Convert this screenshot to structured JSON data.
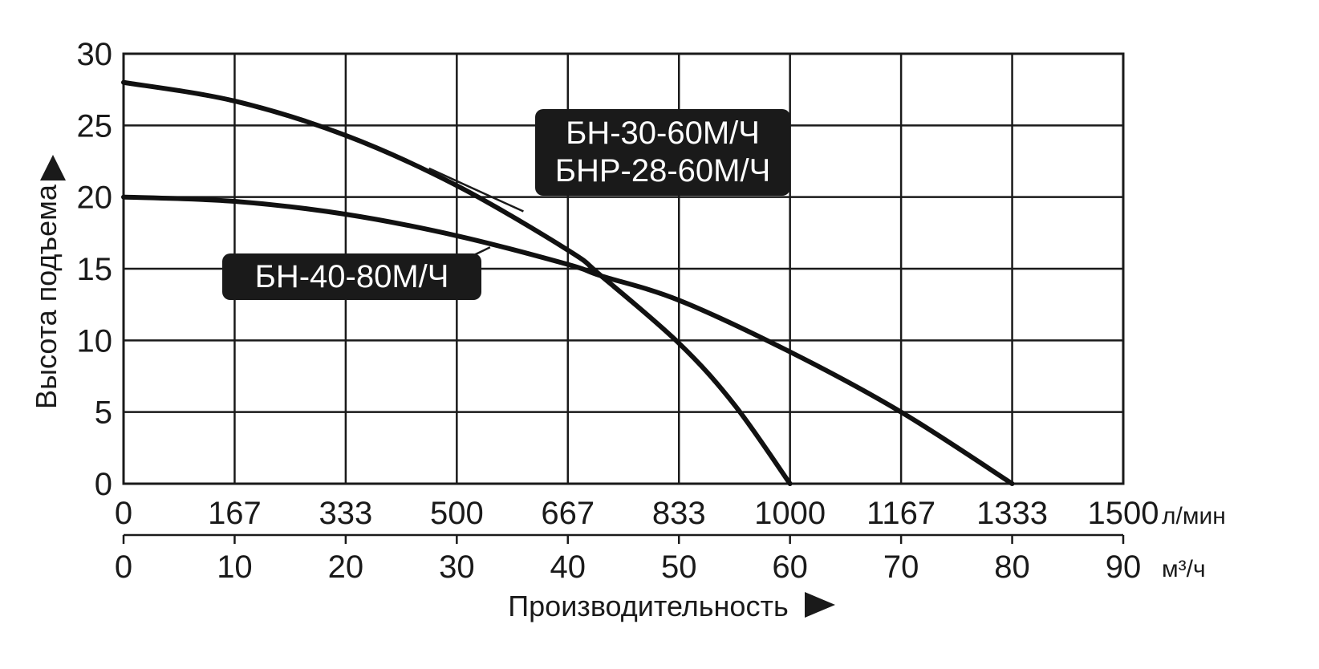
{
  "chart_data": {
    "type": "line",
    "title": "",
    "xlabel": "Производительность",
    "ylabel": "Высота подъема",
    "xlim": [
      0,
      90
    ],
    "ylim": [
      0,
      30
    ],
    "grid": true,
    "y_ticks": [
      "0",
      "5",
      "10",
      "15",
      "20",
      "25",
      "30"
    ],
    "x_ticks_m3h": [
      "0",
      "10",
      "20",
      "30",
      "40",
      "50",
      "60",
      "70",
      "80",
      "90"
    ],
    "x_ticks_lmin": [
      "0",
      "167",
      "333",
      "500",
      "667",
      "833",
      "1000",
      "1167",
      "1333",
      "1500"
    ],
    "x_unit_lmin": "л/мин",
    "x_unit_m3h": "м³/ч",
    "series": [
      {
        "name": "БН-30-60М/Ч\nБНР-28-60М/Ч",
        "label_lines": [
          "БН-30-60М/Ч",
          "БНР-28-60М/Ч"
        ],
        "x": [
          0,
          10,
          20,
          30,
          40,
          43,
          50,
          55,
          60
        ],
        "y": [
          28,
          26.7,
          24.3,
          20.8,
          16.3,
          14.5,
          9.8,
          5.5,
          0
        ]
      },
      {
        "name": "БН-40-80М/Ч",
        "label_lines": [
          "БН-40-80М/Ч"
        ],
        "x": [
          0,
          10,
          20,
          30,
          40,
          43,
          50,
          60,
          70,
          80
        ],
        "y": [
          20,
          19.7,
          18.8,
          17.3,
          15.3,
          14.5,
          12.8,
          9.2,
          5,
          0
        ]
      }
    ]
  }
}
